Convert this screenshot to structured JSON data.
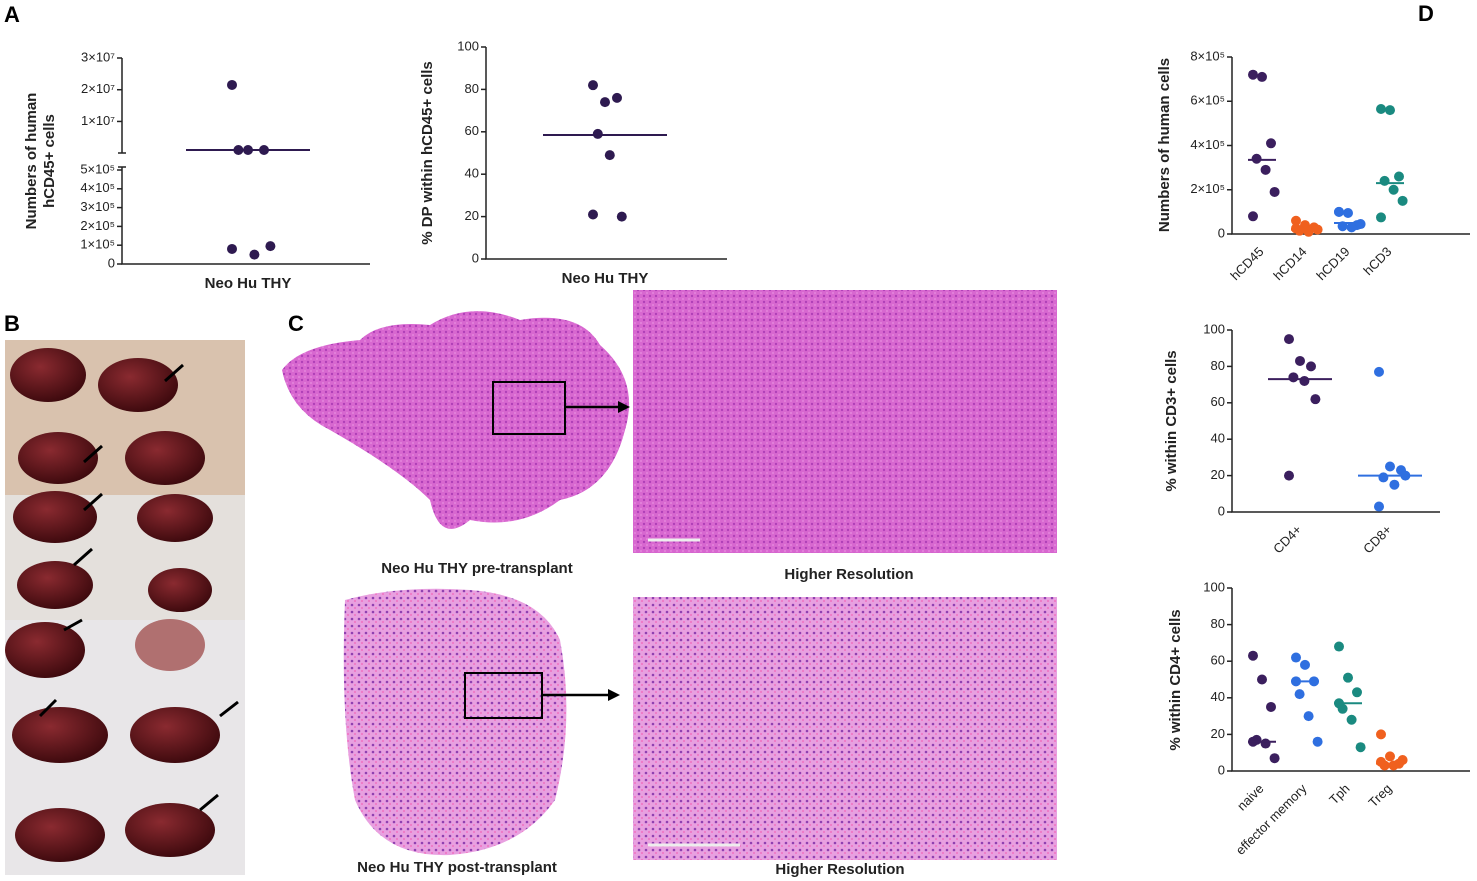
{
  "panels": {
    "a": "A",
    "b": "B",
    "c": "C",
    "d": "D"
  },
  "captions": {
    "pre": "Neo Hu THY pre-transplant",
    "pre_hr": "Higher Resolution",
    "post": "Neo Hu THY post-transplant",
    "post_hr": "Higher Resolution"
  },
  "chart_data": [
    {
      "type": "broken-dot",
      "ylabel": [
        "Numbers of human",
        "hCD45+ cells"
      ],
      "categories": [
        "Neo Hu THY"
      ],
      "colors": [
        "#2e1a50"
      ],
      "points": [
        [
          21500000,
          1000000,
          1000000,
          1000000,
          50000,
          95000,
          80000
        ]
      ],
      "medians": [
        1000000
      ],
      "ylim": [
        1000000,
        30000000
      ],
      "yticks": [
        {
          "value": 10000000,
          "label": "1×10⁷"
        },
        {
          "value": 20000000,
          "label": "2×10⁷"
        },
        {
          "value": 30000000,
          "label": "3×10⁷"
        }
      ],
      "lower_ylim": [
        0,
        500000
      ],
      "lower_yticks": [
        0,
        {
          "value": 100000,
          "label": "1×10⁵"
        },
        {
          "value": 200000,
          "label": "2×10⁵"
        },
        {
          "value": 300000,
          "label": "3×10⁵"
        },
        {
          "value": 400000,
          "label": "4×10⁵"
        },
        {
          "value": 500000,
          "label": "5×10⁵"
        }
      ]
    },
    {
      "type": "dot",
      "ylabel": [
        "% DP within hCD45+ cells"
      ],
      "categories": [
        "Neo Hu THY"
      ],
      "colors": [
        "#2e1a50"
      ],
      "points": [
        [
          82,
          74,
          76,
          59,
          49,
          20,
          21
        ]
      ],
      "medians": [
        58.5
      ],
      "ylim": [
        0,
        100
      ],
      "yticks": [
        0,
        20,
        40,
        60,
        80,
        100
      ]
    },
    {
      "type": "dot",
      "ylabel": [
        "Numbers of human cells"
      ],
      "categories": [
        "hCD45",
        "hCD14",
        "hCD19",
        "hCD3"
      ],
      "colors": [
        "#3b1f5e",
        "#f0601e",
        "#2f6fe0",
        "#1a8a80"
      ],
      "points": [
        [
          720000,
          710000,
          410000,
          340000,
          290000,
          190000,
          80000
        ],
        [
          60000,
          40000,
          30000,
          15000,
          10000,
          20000,
          25000
        ],
        [
          100000,
          95000,
          40000,
          35000,
          30000,
          45000,
          100000
        ],
        [
          565000,
          560000,
          260000,
          240000,
          200000,
          150000,
          75000
        ]
      ],
      "medians": [
        335000,
        20000,
        50000,
        230000
      ],
      "ylim": [
        0,
        800000
      ],
      "yticks": [
        0,
        {
          "value": 200000,
          "label": "2×10⁵"
        },
        {
          "value": 400000,
          "label": "4×10⁵"
        },
        {
          "value": 600000,
          "label": "6×10⁵"
        },
        {
          "value": 800000,
          "label": "8×10⁵"
        }
      ]
    },
    {
      "type": "dot",
      "ylabel": [
        "% within CD3+ cells"
      ],
      "categories": [
        "CD4+",
        "CD8+"
      ],
      "colors": [
        "#3b1f5e",
        "#2f6fe0"
      ],
      "points": [
        [
          95,
          83,
          80,
          74,
          72,
          62,
          20
        ],
        [
          77,
          25,
          23,
          19,
          15,
          20,
          3
        ]
      ],
      "medians": [
        73,
        20
      ],
      "ylim": [
        0,
        100
      ],
      "yticks": [
        0,
        20,
        40,
        60,
        80,
        100
      ]
    },
    {
      "type": "dot",
      "ylabel": [
        "% within CD4+ cells"
      ],
      "categories": [
        "naive",
        "effector memory",
        "Tph",
        "Treg"
      ],
      "colors": [
        "#3b1f5e",
        "#2f6fe0",
        "#1a8a80",
        "#f0601e"
      ],
      "points": [
        [
          63,
          50,
          35,
          17,
          15,
          7,
          16
        ],
        [
          62,
          58,
          49,
          42,
          30,
          16,
          49
        ],
        [
          68,
          51,
          43,
          34,
          28,
          13,
          37
        ],
        [
          20,
          8,
          4,
          3,
          3,
          6,
          5
        ]
      ],
      "medians": [
        16,
        49,
        37,
        4
      ],
      "ylim": [
        0,
        100
      ],
      "yticks": [
        0,
        20,
        40,
        60,
        80,
        100
      ]
    }
  ]
}
